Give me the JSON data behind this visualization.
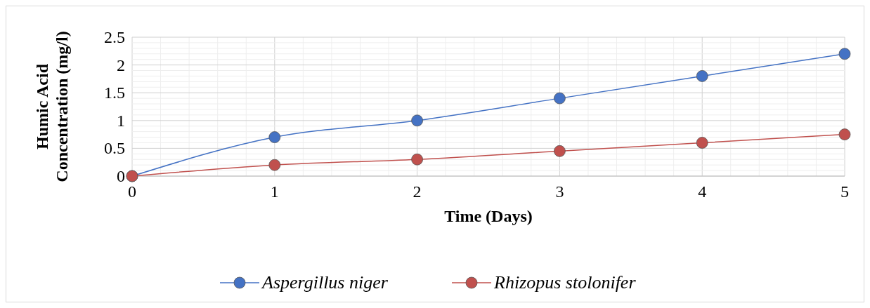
{
  "chart_data": {
    "type": "line",
    "xlabel": "Time (Days)",
    "ylabel": "Humic Acid Concentration (mg/l)",
    "x": [
      0,
      1,
      2,
      3,
      4,
      5
    ],
    "xlim": [
      0,
      5
    ],
    "xticks": [
      0,
      1,
      2,
      3,
      4,
      5
    ],
    "ylim": [
      0,
      2.5
    ],
    "yticks": [
      0,
      0.5,
      1,
      1.5,
      2,
      2.5
    ],
    "grid": true,
    "legend": "bottom",
    "marker": "circle",
    "line_style": "solid",
    "series": [
      {
        "name": "Aspergillus niger",
        "color": "#4472c4",
        "values": [
          0,
          0.7,
          1.0,
          1.4,
          1.8,
          2.2
        ]
      },
      {
        "name": "Rhizopus stolonifer",
        "color": "#c0504d",
        "values": [
          0,
          0.2,
          0.3,
          0.45,
          0.6,
          0.75
        ]
      }
    ]
  }
}
